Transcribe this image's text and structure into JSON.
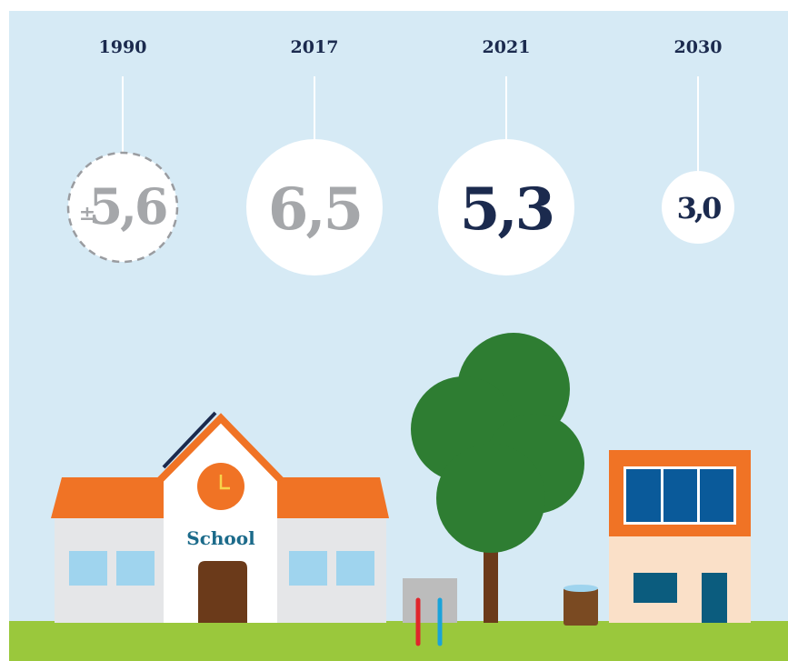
{
  "items": [
    {
      "year": "1990",
      "prefix": "±",
      "value": "5,6"
    },
    {
      "year": "2017",
      "value": "6,5"
    },
    {
      "year": "2021",
      "value": "5,3"
    },
    {
      "year": "2030",
      "value": "3,0"
    }
  ],
  "scene": {
    "school_label": "School"
  }
}
